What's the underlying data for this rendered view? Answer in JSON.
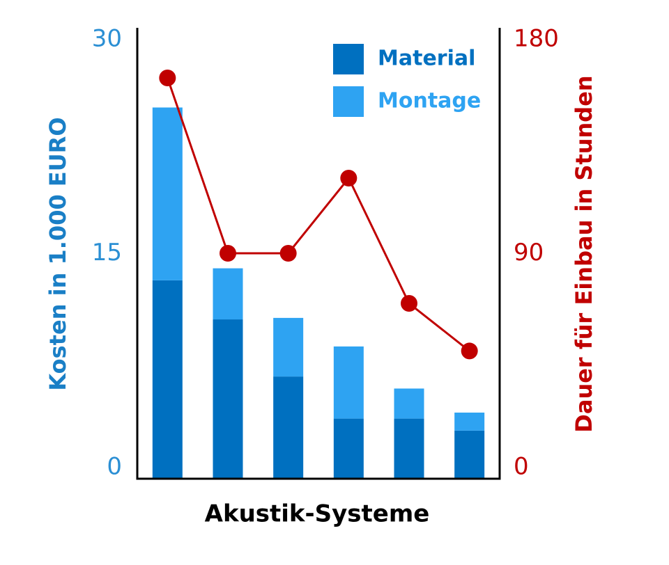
{
  "chart_data": {
    "type": "bar",
    "stacked": true,
    "x_label": "Akustik-Systeme",
    "y_label": "Kosten in 1.000 EURO",
    "y2_label": "Dauer für Einbau in Stunden",
    "categories": [
      null,
      null,
      null,
      null,
      null,
      null
    ],
    "series": [
      {
        "name": "Material",
        "type": "bar",
        "color": "#0070c0",
        "values": [
          13.2,
          10.6,
          6.8,
          4.0,
          4.0,
          3.2
        ]
      },
      {
        "name": "Montage",
        "type": "bar",
        "color": "#2ea3f2",
        "values": [
          11.5,
          3.4,
          3.9,
          4.8,
          2.0,
          1.2
        ]
      },
      {
        "type": "line",
        "axis": "y2",
        "color": "#c00000",
        "values": [
          160,
          90,
          90,
          120,
          70,
          51
        ]
      }
    ],
    "ylim": [
      0,
      30
    ],
    "yticks": [
      0,
      15,
      30
    ],
    "y2lim": [
      0,
      180
    ],
    "y2ticks": [
      0,
      90,
      180
    ],
    "legend": "top-right",
    "grid": false
  }
}
